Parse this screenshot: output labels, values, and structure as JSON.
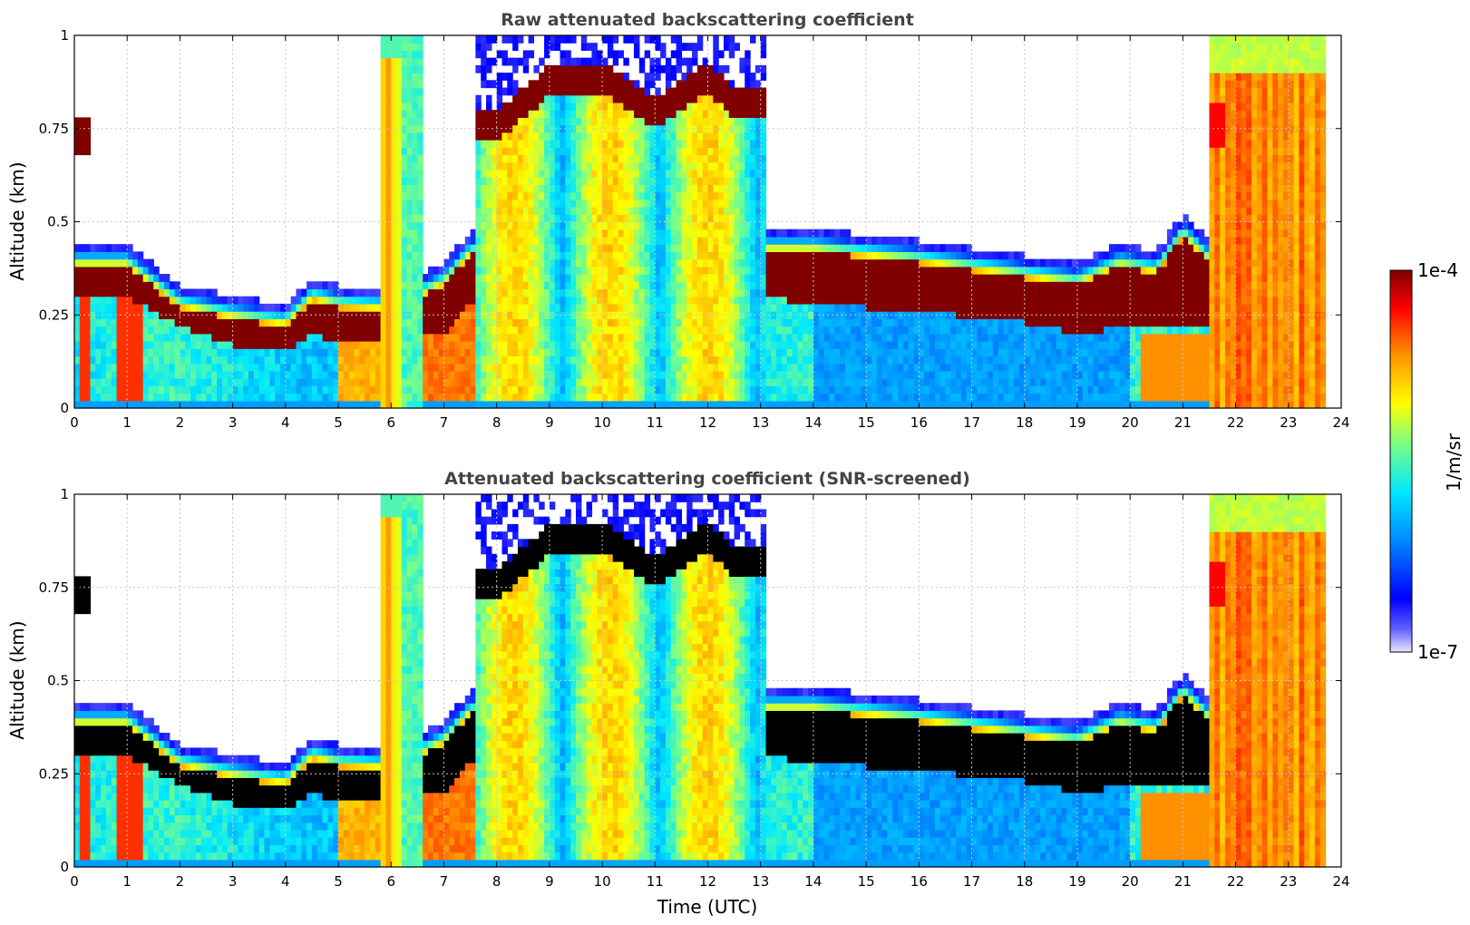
{
  "chart_data": [
    {
      "type": "heatmap",
      "title": "Raw attenuated backscattering coefficient",
      "xlabel": "",
      "ylabel": "Altitude (km)",
      "xlim": [
        0,
        24
      ],
      "ylim": [
        0,
        1
      ],
      "x_ticks": [
        "0",
        "1",
        "2",
        "3",
        "4",
        "5",
        "6",
        "7",
        "8",
        "9",
        "10",
        "11",
        "12",
        "13",
        "14",
        "15",
        "16",
        "17",
        "18",
        "19",
        "20",
        "21",
        "22",
        "23",
        "24"
      ],
      "y_ticks": [
        "0",
        "0.25",
        "0.5",
        "0.75",
        "1"
      ],
      "grid": true,
      "colorbar": {
        "min_label": "1e-7",
        "max_label": "1e-4",
        "label": "1/m/sr",
        "scale": "log"
      },
      "saturated_color": "#800000",
      "layer_top_km": [
        [
          0,
          0.42
        ],
        [
          1,
          0.42
        ],
        [
          2,
          0.31
        ],
        [
          3,
          0.28
        ],
        [
          4,
          0.26
        ],
        [
          4.5,
          0.33
        ],
        [
          5,
          0.31
        ],
        [
          6,
          0.3
        ],
        [
          7,
          0.37
        ],
        [
          7.5,
          0.45
        ],
        [
          13,
          0.46
        ],
        [
          14,
          0.46
        ],
        [
          16,
          0.43
        ],
        [
          18,
          0.39
        ],
        [
          19,
          0.37
        ],
        [
          19.8,
          0.42
        ],
        [
          20.5,
          0.4
        ],
        [
          21,
          0.5
        ],
        [
          21.5,
          0.43
        ]
      ],
      "layer_base_km": [
        [
          0,
          0.3
        ],
        [
          1,
          0.3
        ],
        [
          2,
          0.22
        ],
        [
          3,
          0.17
        ],
        [
          4,
          0.15
        ],
        [
          4.5,
          0.2
        ],
        [
          5,
          0.17
        ],
        [
          6,
          0.18
        ],
        [
          7,
          0.2
        ],
        [
          7.5,
          0.28
        ],
        [
          13,
          0.3
        ],
        [
          14,
          0.28
        ],
        [
          16,
          0.26
        ],
        [
          18,
          0.23
        ],
        [
          19,
          0.2
        ],
        [
          20,
          0.22
        ],
        [
          21,
          0.22
        ],
        [
          21.5,
          0.22
        ]
      ],
      "upper_cloud_base_km": [
        [
          8,
          0.72
        ],
        [
          9,
          0.84
        ],
        [
          10,
          0.85
        ],
        [
          11,
          0.75
        ],
        [
          12,
          0.85
        ],
        [
          12.5,
          0.78
        ]
      ]
    },
    {
      "type": "heatmap",
      "title": "Attenuated backscattering coefficient (SNR-screened)",
      "xlabel": "Time (UTC)",
      "ylabel": "Altitude (km)",
      "xlim": [
        0,
        24
      ],
      "ylim": [
        0,
        1
      ],
      "x_ticks": [
        "0",
        "1",
        "2",
        "3",
        "4",
        "5",
        "6",
        "7",
        "8",
        "9",
        "10",
        "11",
        "12",
        "13",
        "14",
        "15",
        "16",
        "17",
        "18",
        "19",
        "20",
        "21",
        "22",
        "23",
        "24"
      ],
      "y_ticks": [
        "0",
        "0.25",
        "0.5",
        "0.75",
        "1"
      ],
      "grid": true,
      "colorbar": {
        "min_label": "1e-7",
        "max_label": "1e-4",
        "label": "1/m/sr",
        "scale": "log"
      },
      "saturated_color": "#000000",
      "layer_top_km": [
        [
          0,
          0.42
        ],
        [
          1,
          0.42
        ],
        [
          2,
          0.31
        ],
        [
          3,
          0.28
        ],
        [
          4,
          0.26
        ],
        [
          4.5,
          0.33
        ],
        [
          5,
          0.31
        ],
        [
          6,
          0.3
        ],
        [
          7,
          0.37
        ],
        [
          7.5,
          0.45
        ],
        [
          13,
          0.46
        ],
        [
          14,
          0.46
        ],
        [
          16,
          0.43
        ],
        [
          18,
          0.39
        ],
        [
          19,
          0.37
        ],
        [
          19.8,
          0.42
        ],
        [
          20.5,
          0.4
        ],
        [
          21,
          0.5
        ],
        [
          21.5,
          0.43
        ]
      ],
      "layer_base_km": [
        [
          0,
          0.3
        ],
        [
          1,
          0.3
        ],
        [
          2,
          0.22
        ],
        [
          3,
          0.17
        ],
        [
          4,
          0.15
        ],
        [
          4.5,
          0.2
        ],
        [
          5,
          0.17
        ],
        [
          6,
          0.18
        ],
        [
          7,
          0.2
        ],
        [
          7.5,
          0.28
        ],
        [
          13,
          0.3
        ],
        [
          14,
          0.28
        ],
        [
          16,
          0.26
        ],
        [
          18,
          0.23
        ],
        [
          19,
          0.2
        ],
        [
          20,
          0.22
        ],
        [
          21,
          0.22
        ],
        [
          21.5,
          0.22
        ]
      ],
      "upper_cloud_base_km": [
        [
          8,
          0.72
        ],
        [
          9,
          0.84
        ],
        [
          10,
          0.85
        ],
        [
          11,
          0.75
        ],
        [
          12,
          0.85
        ],
        [
          12.5,
          0.78
        ]
      ]
    }
  ]
}
